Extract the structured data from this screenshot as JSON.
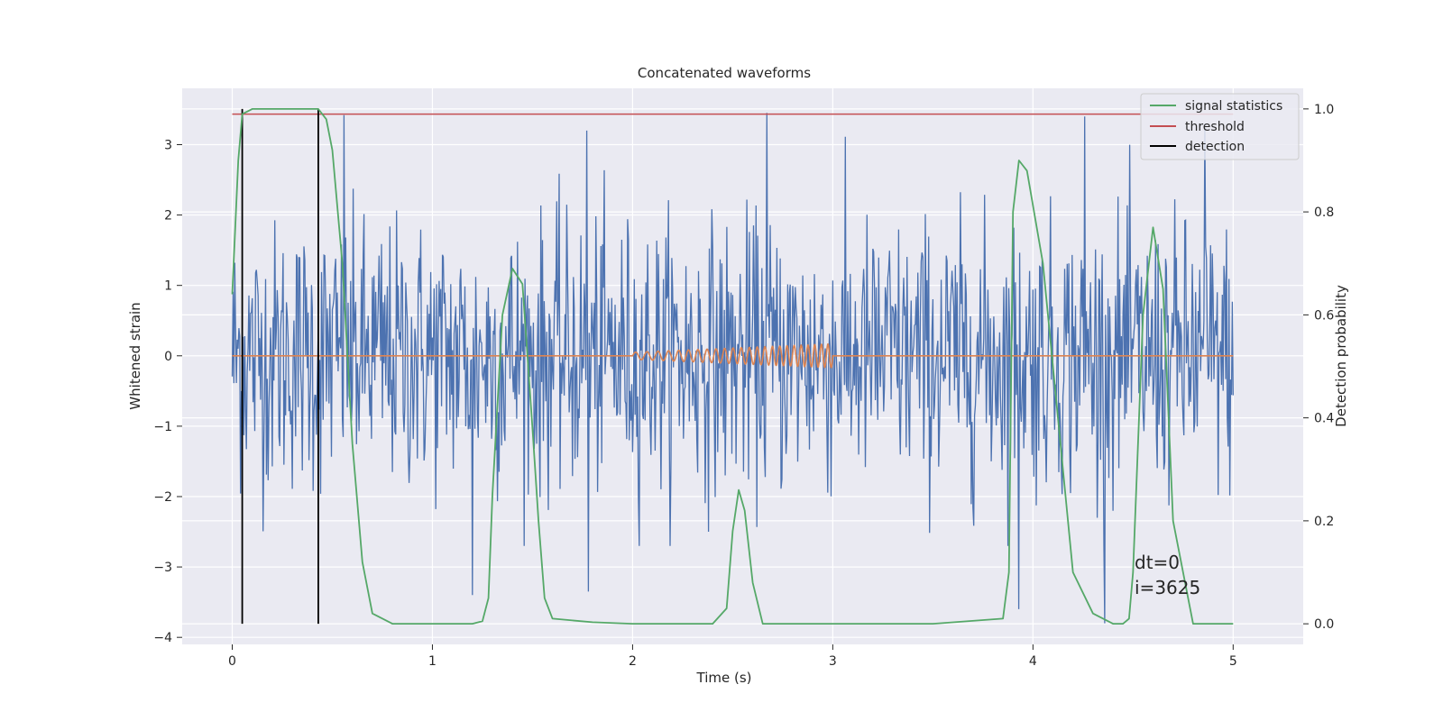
{
  "chart_data": {
    "type": "line",
    "title": "Concatenated waveforms",
    "xlabel": "Time (s)",
    "ylabel": "Whitened strain",
    "y2label": "Detection probability",
    "xlim": [
      -0.25,
      5.35
    ],
    "ylim": [
      -4.1,
      3.8
    ],
    "y2lim": [
      -0.04,
      1.04
    ],
    "x_ticks": [
      0,
      1,
      2,
      3,
      4,
      5
    ],
    "y_ticks": [
      -4,
      -3,
      -2,
      -1,
      0,
      1,
      2,
      3
    ],
    "y2_ticks": [
      0.0,
      0.2,
      0.4,
      0.6,
      0.8,
      1.0
    ],
    "x_tick_labels": [
      "0",
      "1",
      "2",
      "3",
      "4",
      "5"
    ],
    "y_tick_labels": [
      "−4",
      "−3",
      "−2",
      "−1",
      "0",
      "1",
      "2",
      "3"
    ],
    "y2_tick_labels": [
      "0.0",
      "0.2",
      "0.4",
      "0.6",
      "0.8",
      "1.0"
    ],
    "grid": true,
    "legend_position": "top-right",
    "colors": {
      "strain": "#4c72b0",
      "template": "#dd8452",
      "signal_statistics": "#55a868",
      "threshold": "#c44e52",
      "detection": "#000000",
      "axes_bg": "#eaeaf2",
      "grid": "#ffffff"
    },
    "legend": [
      {
        "name": "signal statistics",
        "color": "#55a868"
      },
      {
        "name": "threshold",
        "color": "#c44e52"
      },
      {
        "name": "detection",
        "color": "#000000"
      }
    ],
    "strain_series": {
      "x_range": [
        0,
        5
      ],
      "sample_count": 1200,
      "envelope_y": [
        -2.7,
        3.45
      ],
      "peak_points": [
        [
          0.56,
          3.42
        ],
        [
          1.77,
          3.2
        ],
        [
          2.67,
          3.45
        ],
        [
          4.26,
          3.4
        ],
        [
          4.86,
          3.3
        ],
        [
          4.36,
          -3.8
        ],
        [
          3.93,
          -3.6
        ],
        [
          1.2,
          -3.4
        ],
        [
          1.78,
          -3.35
        ]
      ]
    },
    "template_series": {
      "x_range": [
        0,
        5
      ],
      "chirp_start": 2.0,
      "chirp_end": 3.0,
      "amplitude_start": 0.05,
      "amplitude_end": 0.17,
      "cycles": 24
    },
    "signal_statistics": {
      "x": [
        0,
        0.03,
        0.05,
        0.1,
        0.2,
        0.3,
        0.4,
        0.43,
        0.47,
        0.5,
        0.55,
        0.6,
        0.65,
        0.7,
        0.8,
        1.0,
        1.2,
        1.25,
        1.28,
        1.3,
        1.35,
        1.4,
        1.45,
        1.5,
        1.53,
        1.56,
        1.6,
        1.8,
        2.0,
        2.4,
        2.47,
        2.5,
        2.53,
        2.56,
        2.6,
        2.65,
        3.0,
        3.5,
        3.85,
        3.88,
        3.9,
        3.93,
        3.97,
        4.05,
        4.15,
        4.2,
        4.3,
        4.4,
        4.45,
        4.48,
        4.5,
        4.55,
        4.6,
        4.65,
        4.7,
        4.8,
        5.0
      ],
      "y": [
        0.64,
        0.9,
        0.99,
        1.0,
        1.0,
        1.0,
        1.0,
        1.0,
        0.98,
        0.92,
        0.7,
        0.35,
        0.12,
        0.02,
        0.0,
        0.0,
        0.0,
        0.005,
        0.05,
        0.25,
        0.6,
        0.69,
        0.66,
        0.38,
        0.2,
        0.05,
        0.01,
        0.003,
        0.0,
        0.0,
        0.03,
        0.18,
        0.26,
        0.22,
        0.08,
        0.0,
        0.0,
        0.0,
        0.01,
        0.1,
        0.8,
        0.9,
        0.88,
        0.7,
        0.3,
        0.1,
        0.02,
        0.0,
        0.0,
        0.01,
        0.1,
        0.6,
        0.77,
        0.65,
        0.2,
        0.0,
        0.0
      ]
    },
    "threshold": {
      "y": 0.99,
      "x": [
        0,
        5
      ]
    },
    "detections": [
      0.05,
      0.43
    ],
    "annotations": [
      "dt=0",
      "i=3625"
    ]
  }
}
